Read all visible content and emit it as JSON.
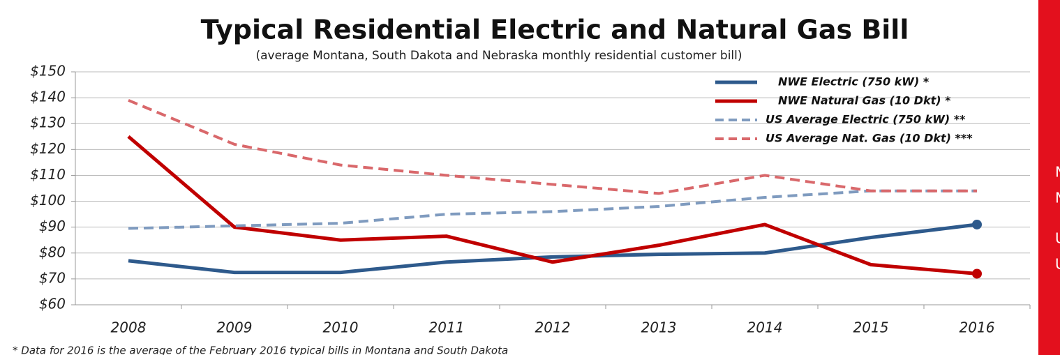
{
  "chart_data": {
    "type": "line",
    "title": "Typical Residential Electric and Natural Gas Bill",
    "subtitle": "(average Montana, South Dakota and Nebraska monthly residential customer bill)",
    "categories": [
      "2008",
      "2009",
      "2010",
      "2011",
      "2012",
      "2013",
      "2014",
      "2015",
      "2016"
    ],
    "series": [
      {
        "name": "NWE Electric (750 kW) *",
        "color": "#2e5a8c",
        "style": "solid",
        "end_marker": true,
        "values": [
          77,
          72.5,
          72.5,
          76.5,
          78.5,
          79.5,
          80,
          86,
          91
        ]
      },
      {
        "name": "NWE Natural Gas (10 Dkt) *",
        "color": "#c00000",
        "style": "solid",
        "end_marker": true,
        "values": [
          125,
          90,
          85,
          86.5,
          76.5,
          83,
          91,
          75.5,
          72
        ]
      },
      {
        "name": "US Average Electric (750 kW) **",
        "color": "#7f9bbf",
        "style": "dashed",
        "end_marker": false,
        "values": [
          89.5,
          90.5,
          91.5,
          95,
          96,
          98,
          101.5,
          104,
          104
        ]
      },
      {
        "name": "US Average Nat. Gas (10 Dkt) ***",
        "color": "#d9686b",
        "style": "dashed",
        "end_marker": false,
        "values": [
          139,
          122,
          114,
          110,
          106.5,
          103,
          110,
          104,
          104
        ]
      }
    ],
    "ylim": [
      60,
      150
    ],
    "yticks": [
      {
        "value": 60,
        "label": "$60"
      },
      {
        "value": 70,
        "label": "$70"
      },
      {
        "value": 80,
        "label": "$80"
      },
      {
        "value": 90,
        "label": "$90"
      },
      {
        "value": 100,
        "label": "$100"
      },
      {
        "value": 110,
        "label": "$110"
      },
      {
        "value": 120,
        "label": "$120"
      },
      {
        "value": 130,
        "label": "$130"
      },
      {
        "value": 140,
        "label": "$140"
      },
      {
        "value": 150,
        "label": "$150"
      }
    ],
    "grid": true,
    "legend": "upper right",
    "footnote": "* Data for 2016 is the average of the February 2016 typical bills in Montana and South Dakota"
  },
  "sidebar": {
    "lines": [
      "N",
      "N",
      "U",
      "U"
    ]
  }
}
